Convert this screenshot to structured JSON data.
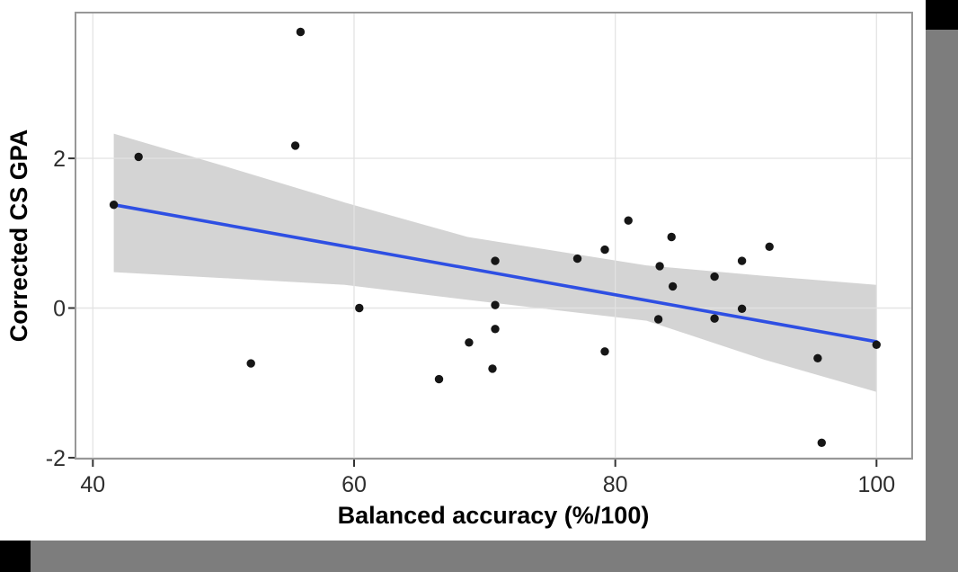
{
  "chart_data": {
    "type": "scatter",
    "title": "",
    "xlabel": "Balanced accuracy (%/100)",
    "ylabel": "Corrected CS GPA",
    "x_tick_labels": [
      "40",
      "60",
      "80",
      "100"
    ],
    "x_tick_values": [
      40,
      60,
      80,
      100
    ],
    "y_tick_labels": [
      "2",
      "0",
      "-2"
    ],
    "y_tick_values": [
      2,
      0,
      -2
    ],
    "xlim": [
      38.67,
      102.73
    ],
    "ylim": [
      -2.013,
      3.948
    ],
    "grid": "major-only",
    "legend": "none",
    "points": [
      [
        41.6,
        1.38
      ],
      [
        43.5,
        2.02
      ],
      [
        52.1,
        -0.74
      ],
      [
        55.5,
        2.17
      ],
      [
        55.9,
        3.69
      ],
      [
        60.4,
        0.0
      ],
      [
        66.5,
        -0.95
      ],
      [
        68.8,
        -0.46
      ],
      [
        70.6,
        -0.81
      ],
      [
        70.8,
        0.63
      ],
      [
        70.8,
        0.04
      ],
      [
        70.8,
        -0.28
      ],
      [
        77.1,
        0.66
      ],
      [
        79.2,
        0.78
      ],
      [
        79.2,
        -0.58
      ],
      [
        81.0,
        1.17
      ],
      [
        83.3,
        -0.15
      ],
      [
        83.4,
        0.56
      ],
      [
        84.3,
        0.95
      ],
      [
        84.4,
        0.29
      ],
      [
        87.6,
        0.42
      ],
      [
        87.6,
        -0.14
      ],
      [
        89.7,
        0.63
      ],
      [
        89.7,
        -0.01
      ],
      [
        91.8,
        0.82
      ],
      [
        95.5,
        -0.67
      ],
      [
        95.8,
        -1.8
      ],
      [
        100.0,
        -0.49
      ]
    ],
    "regression_line": {
      "x": [
        41.6,
        100.0
      ],
      "y": [
        1.38,
        -0.45
      ]
    },
    "confidence_band": {
      "x": [
        41.6,
        50.0,
        59.3,
        68.7,
        82.4,
        91.4,
        100.0
      ],
      "upper": [
        2.33,
        1.9,
        1.41,
        0.95,
        0.57,
        0.43,
        0.31
      ],
      "lower": [
        0.48,
        0.4,
        0.31,
        0.11,
        -0.17,
        -0.69,
        -1.12
      ]
    },
    "colors": {
      "point": "#161616",
      "line": "#2e4fe3",
      "band": "#d4d4d4",
      "grid": "#e2e2e2",
      "panel_border": "#979797",
      "tick": "#333333",
      "tick_label": "#2e2e2e",
      "axis_title": "#000000",
      "background": "#ffffff"
    }
  },
  "frame": {
    "right_bar_color": "#7d7d7d",
    "bottom_bar_color": "#7d7d7d",
    "corner_color": "#000000"
  }
}
